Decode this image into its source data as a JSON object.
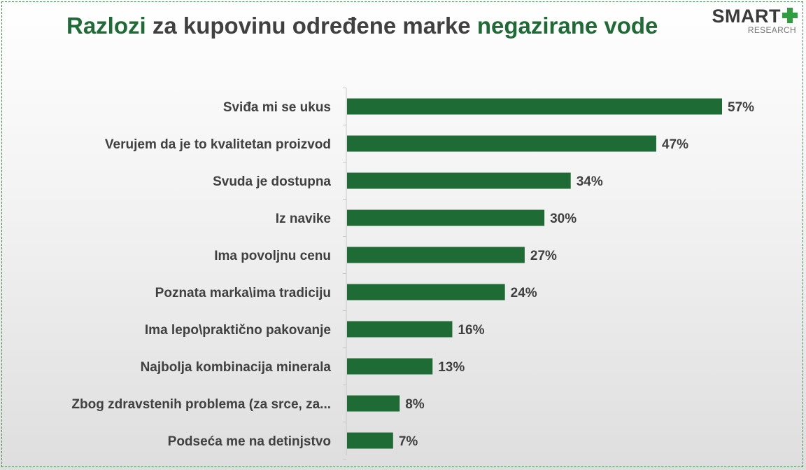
{
  "title": {
    "part1": "Razlozi",
    "part2": " za kupovinu određene marke ",
    "part3": "negazirane vode"
  },
  "logo": {
    "main": "SMART",
    "sub": "RESEARCH"
  },
  "colors": {
    "bar": "#1f6b35",
    "accent": "#1f6b35",
    "text": "#404040",
    "logo_plus": "#2e9e3e"
  },
  "chart_data": {
    "type": "bar",
    "orientation": "horizontal",
    "title": "Razlozi za kupovinu određene marke negazirane vode",
    "categories": [
      "Sviđa mi se ukus",
      "Verujem da je to kvalitetan proizvod",
      "Svuda je dostupna",
      "Iz navike",
      "Ima povoljnu cenu",
      "Poznata marka\\ima tradiciju",
      "Ima lepo\\praktično pakovanje",
      "Najbolja kombinacija minerala",
      "Zbog zdravstenih problema (za srce, za...",
      "Podseća me na detinjstvo"
    ],
    "values": [
      57,
      47,
      34,
      30,
      27,
      24,
      16,
      13,
      8,
      7
    ],
    "value_labels": [
      "57%",
      "47%",
      "34%",
      "30%",
      "27%",
      "24%",
      "16%",
      "13%",
      "8%",
      "7%"
    ],
    "xlim": [
      0,
      57
    ],
    "grid": false,
    "legend": "none"
  }
}
